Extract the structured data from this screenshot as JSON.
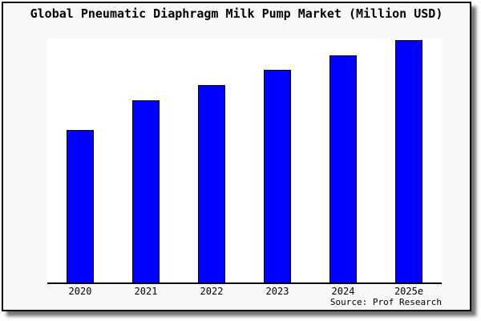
{
  "window": {
    "page_background": "#ffffff"
  },
  "frame": {
    "background": "#f8f8f8",
    "border_color": "#000000",
    "shadow_color": "#666666"
  },
  "chart_data": {
    "type": "bar",
    "title": "Global Pneumatic Diaphragm Milk Pump Market (Million USD)",
    "categories": [
      "2020",
      "2021",
      "2022",
      "2023",
      "2024",
      "2025e"
    ],
    "values": [
      190,
      227,
      246,
      265,
      283,
      302
    ],
    "value_note": "relative bar heights (px); chart displays no y-axis scale or data labels",
    "xlabel": "",
    "ylabel": "",
    "ylim": [
      0,
      304
    ],
    "grid": false,
    "legend": null,
    "bar_fill": "#0000ff",
    "bar_edge": "#000000",
    "plot_background": "#ffffff",
    "axis_color": "#000000",
    "source": "Source: Prof Research"
  }
}
